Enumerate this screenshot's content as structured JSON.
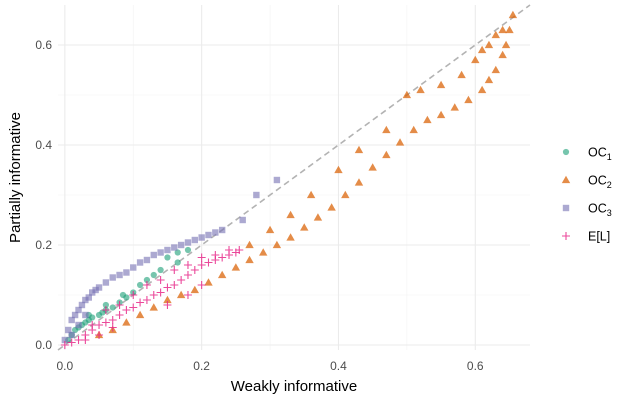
{
  "chart_data": {
    "type": "scatter",
    "title": "",
    "xlabel": "Weakly informative",
    "ylabel": "Partially informative",
    "xlim": [
      -0.01,
      0.68
    ],
    "ylim": [
      -0.01,
      0.68
    ],
    "x_ticks": [
      0.0,
      0.2,
      0.4,
      0.6
    ],
    "x_tick_labels": [
      "0.0",
      "0.2",
      "0.4",
      "0.6"
    ],
    "y_ticks": [
      0.0,
      0.2,
      0.4,
      0.6
    ],
    "y_tick_labels": [
      "0.0",
      "0.2",
      "0.4",
      "0.6"
    ],
    "grid": true,
    "reference_line": {
      "type": "identity",
      "style": "dashed",
      "color": "#b3b3b3"
    },
    "legend": {
      "placement": "right",
      "entries": [
        {
          "base": "OC",
          "sub": "1",
          "shape": "circle",
          "color": "#1b9e77"
        },
        {
          "base": "OC",
          "sub": "2",
          "shape": "triangle",
          "color": "#d95f02"
        },
        {
          "base": "OC",
          "sub": "3",
          "shape": "square",
          "color": "#7570b3"
        },
        {
          "base": "E[L]",
          "sub": "",
          "shape": "plus",
          "color": "#e7298a"
        }
      ]
    },
    "series": [
      {
        "name": "OC1",
        "shape": "circle",
        "color": "#1b9e77",
        "points": [
          [
            0.005,
            0.01
          ],
          [
            0.01,
            0.02
          ],
          [
            0.015,
            0.03
          ],
          [
            0.02,
            0.035
          ],
          [
            0.025,
            0.04
          ],
          [
            0.03,
            0.045
          ],
          [
            0.035,
            0.05
          ],
          [
            0.04,
            0.055
          ],
          [
            0.05,
            0.06
          ],
          [
            0.055,
            0.065
          ],
          [
            0.06,
            0.07
          ],
          [
            0.07,
            0.075
          ],
          [
            0.08,
            0.085
          ],
          [
            0.09,
            0.095
          ],
          [
            0.1,
            0.105
          ],
          [
            0.11,
            0.12
          ],
          [
            0.12,
            0.13
          ],
          [
            0.13,
            0.14
          ],
          [
            0.14,
            0.15
          ],
          [
            0.15,
            0.175
          ],
          [
            0.165,
            0.185
          ],
          [
            0.18,
            0.19
          ],
          [
            0.035,
            0.06
          ],
          [
            0.06,
            0.08
          ],
          [
            0.085,
            0.1
          ],
          [
            0.165,
            0.165
          ]
        ]
      },
      {
        "name": "OC2",
        "shape": "triangle",
        "color": "#d95f02",
        "points": [
          [
            0.05,
            0.02
          ],
          [
            0.07,
            0.03
          ],
          [
            0.09,
            0.045
          ],
          [
            0.11,
            0.06
          ],
          [
            0.13,
            0.075
          ],
          [
            0.15,
            0.09
          ],
          [
            0.17,
            0.1
          ],
          [
            0.19,
            0.11
          ],
          [
            0.21,
            0.125
          ],
          [
            0.23,
            0.14
          ],
          [
            0.25,
            0.155
          ],
          [
            0.27,
            0.17
          ],
          [
            0.29,
            0.185
          ],
          [
            0.31,
            0.2
          ],
          [
            0.33,
            0.215
          ],
          [
            0.35,
            0.235
          ],
          [
            0.37,
            0.255
          ],
          [
            0.39,
            0.275
          ],
          [
            0.41,
            0.3
          ],
          [
            0.43,
            0.325
          ],
          [
            0.45,
            0.355
          ],
          [
            0.47,
            0.38
          ],
          [
            0.49,
            0.405
          ],
          [
            0.51,
            0.43
          ],
          [
            0.53,
            0.45
          ],
          [
            0.55,
            0.46
          ],
          [
            0.57,
            0.475
          ],
          [
            0.59,
            0.49
          ],
          [
            0.61,
            0.51
          ],
          [
            0.62,
            0.53
          ],
          [
            0.63,
            0.55
          ],
          [
            0.64,
            0.58
          ],
          [
            0.645,
            0.6
          ],
          [
            0.65,
            0.63
          ],
          [
            0.655,
            0.66
          ],
          [
            0.5,
            0.5
          ],
          [
            0.55,
            0.52
          ],
          [
            0.58,
            0.54
          ],
          [
            0.6,
            0.57
          ],
          [
            0.62,
            0.6
          ],
          [
            0.63,
            0.62
          ],
          [
            0.64,
            0.63
          ],
          [
            0.61,
            0.59
          ],
          [
            0.52,
            0.51
          ],
          [
            0.47,
            0.43
          ],
          [
            0.43,
            0.39
          ],
          [
            0.4,
            0.35
          ],
          [
            0.36,
            0.3
          ],
          [
            0.33,
            0.26
          ],
          [
            0.3,
            0.23
          ],
          [
            0.27,
            0.2
          ]
        ]
      },
      {
        "name": "OC3",
        "shape": "square",
        "color": "#7570b3",
        "points": [
          [
            0.0,
            0.01
          ],
          [
            0.005,
            0.03
          ],
          [
            0.01,
            0.05
          ],
          [
            0.015,
            0.06
          ],
          [
            0.02,
            0.07
          ],
          [
            0.025,
            0.08
          ],
          [
            0.03,
            0.09
          ],
          [
            0.035,
            0.095
          ],
          [
            0.04,
            0.105
          ],
          [
            0.045,
            0.11
          ],
          [
            0.05,
            0.115
          ],
          [
            0.06,
            0.125
          ],
          [
            0.07,
            0.135
          ],
          [
            0.08,
            0.14
          ],
          [
            0.09,
            0.145
          ],
          [
            0.1,
            0.155
          ],
          [
            0.11,
            0.165
          ],
          [
            0.12,
            0.17
          ],
          [
            0.13,
            0.18
          ],
          [
            0.14,
            0.185
          ],
          [
            0.15,
            0.19
          ],
          [
            0.16,
            0.195
          ],
          [
            0.17,
            0.2
          ],
          [
            0.18,
            0.205
          ],
          [
            0.19,
            0.21
          ],
          [
            0.2,
            0.215
          ],
          [
            0.21,
            0.22
          ],
          [
            0.22,
            0.225
          ],
          [
            0.23,
            0.23
          ],
          [
            0.26,
            0.25
          ],
          [
            0.28,
            0.3
          ],
          [
            0.31,
            0.33
          ],
          [
            0.01,
            0.02
          ],
          [
            0.02,
            0.04
          ],
          [
            0.03,
            0.06
          ]
        ]
      },
      {
        "name": "E[L]",
        "shape": "plus",
        "color": "#e7298a",
        "points": [
          [
            0.0,
            0.0
          ],
          [
            0.01,
            0.005
          ],
          [
            0.02,
            0.01
          ],
          [
            0.03,
            0.02
          ],
          [
            0.04,
            0.03
          ],
          [
            0.05,
            0.04
          ],
          [
            0.06,
            0.045
          ],
          [
            0.07,
            0.05
          ],
          [
            0.08,
            0.06
          ],
          [
            0.09,
            0.07
          ],
          [
            0.1,
            0.075
          ],
          [
            0.11,
            0.085
          ],
          [
            0.12,
            0.09
          ],
          [
            0.13,
            0.1
          ],
          [
            0.14,
            0.105
          ],
          [
            0.15,
            0.115
          ],
          [
            0.16,
            0.12
          ],
          [
            0.17,
            0.13
          ],
          [
            0.18,
            0.14
          ],
          [
            0.19,
            0.15
          ],
          [
            0.2,
            0.16
          ],
          [
            0.21,
            0.165
          ],
          [
            0.22,
            0.17
          ],
          [
            0.23,
            0.175
          ],
          [
            0.24,
            0.18
          ],
          [
            0.25,
            0.185
          ],
          [
            0.255,
            0.19
          ],
          [
            0.04,
            0.04
          ],
          [
            0.06,
            0.07
          ],
          [
            0.08,
            0.08
          ],
          [
            0.1,
            0.1
          ],
          [
            0.12,
            0.12
          ],
          [
            0.14,
            0.13
          ],
          [
            0.16,
            0.15
          ],
          [
            0.18,
            0.16
          ],
          [
            0.2,
            0.175
          ],
          [
            0.22,
            0.18
          ],
          [
            0.24,
            0.19
          ],
          [
            0.03,
            0.01
          ],
          [
            0.05,
            0.02
          ],
          [
            0.07,
            0.035
          ],
          [
            0.15,
            0.08
          ],
          [
            0.18,
            0.1
          ],
          [
            0.2,
            0.12
          ]
        ]
      }
    ]
  }
}
